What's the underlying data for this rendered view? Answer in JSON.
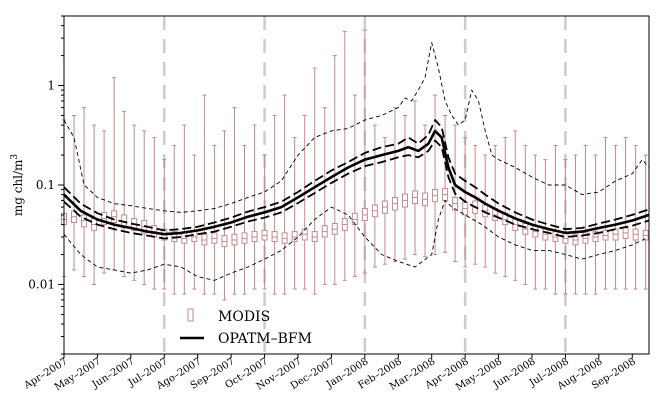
{
  "chart_data": {
    "type": "line",
    "ylabel": "mg chl/m",
    "ylabel_superscript": "3",
    "yscale": "log",
    "ylim": [
      0.002,
      5
    ],
    "ytick_labels": [
      "0.01",
      "0.1",
      "1"
    ],
    "ytick_values": [
      0.01,
      0.1,
      1
    ],
    "xlim": [
      0,
      17.5
    ],
    "x_month_labels": [
      "Apr–2007",
      "May–2007",
      "Jun–2007",
      "Jul–2007",
      "Ago–2007",
      "Sep–2007",
      "Oct–2007",
      "Nov–2007",
      "Dec–2007",
      "Jan–2008",
      "Feb–2008",
      "Mar–2008",
      "Apr–2008",
      "May–2008",
      "Jun–2008",
      "Jul–2008",
      "Aug–2008",
      "Sep–2008"
    ],
    "vertical_dashed_lines_at_month": [
      3,
      6,
      9,
      12,
      15
    ],
    "legend": {
      "position": "bottom-left",
      "entries": [
        "MODIS",
        "OPATM–BFM"
      ]
    },
    "colors": {
      "modis": "#c48a8f",
      "model": "#000000",
      "vline": "#cccccc"
    },
    "series": [
      {
        "name": "OPATM–BFM",
        "style": "solid-thick",
        "points": [
          [
            0,
            0.08
          ],
          [
            0.5,
            0.055
          ],
          [
            1,
            0.045
          ],
          [
            1.5,
            0.04
          ],
          [
            2,
            0.037
          ],
          [
            2.5,
            0.034
          ],
          [
            3,
            0.032
          ],
          [
            3.5,
            0.033
          ],
          [
            4,
            0.035
          ],
          [
            4.5,
            0.038
          ],
          [
            5,
            0.042
          ],
          [
            5.5,
            0.048
          ],
          [
            6,
            0.053
          ],
          [
            6.5,
            0.06
          ],
          [
            7,
            0.075
          ],
          [
            7.5,
            0.095
          ],
          [
            8,
            0.12
          ],
          [
            8.5,
            0.15
          ],
          [
            9,
            0.18
          ],
          [
            9.5,
            0.2
          ],
          [
            10,
            0.22
          ],
          [
            10.3,
            0.24
          ],
          [
            10.6,
            0.22
          ],
          [
            10.9,
            0.26
          ],
          [
            11.1,
            0.35
          ],
          [
            11.3,
            0.3
          ],
          [
            11.5,
            0.15
          ],
          [
            11.7,
            0.1
          ],
          [
            12,
            0.085
          ],
          [
            12.3,
            0.075
          ],
          [
            12.6,
            0.065
          ],
          [
            13,
            0.055
          ],
          [
            13.5,
            0.046
          ],
          [
            14,
            0.04
          ],
          [
            14.5,
            0.036
          ],
          [
            15,
            0.033
          ],
          [
            15.5,
            0.034
          ],
          [
            16,
            0.037
          ],
          [
            16.5,
            0.04
          ],
          [
            17,
            0.044
          ],
          [
            17.5,
            0.05
          ]
        ]
      },
      {
        "name": "",
        "style": "dashed-thick",
        "points": [
          [
            0,
            0.095
          ],
          [
            0.5,
            0.065
          ],
          [
            1,
            0.052
          ],
          [
            1.5,
            0.045
          ],
          [
            2,
            0.041
          ],
          [
            2.5,
            0.038
          ],
          [
            3,
            0.035
          ],
          [
            3.5,
            0.036
          ],
          [
            4,
            0.038
          ],
          [
            4.5,
            0.042
          ],
          [
            5,
            0.047
          ],
          [
            5.5,
            0.054
          ],
          [
            6,
            0.06
          ],
          [
            6.5,
            0.068
          ],
          [
            7,
            0.085
          ],
          [
            7.5,
            0.11
          ],
          [
            8,
            0.14
          ],
          [
            8.5,
            0.17
          ],
          [
            9,
            0.21
          ],
          [
            9.5,
            0.24
          ],
          [
            10,
            0.26
          ],
          [
            10.3,
            0.3
          ],
          [
            10.6,
            0.26
          ],
          [
            10.9,
            0.32
          ],
          [
            11.1,
            0.45
          ],
          [
            11.3,
            0.38
          ],
          [
            11.5,
            0.19
          ],
          [
            11.7,
            0.13
          ],
          [
            12,
            0.11
          ],
          [
            12.3,
            0.095
          ],
          [
            12.6,
            0.08
          ],
          [
            13,
            0.065
          ],
          [
            13.5,
            0.053
          ],
          [
            14,
            0.045
          ],
          [
            14.5,
            0.04
          ],
          [
            15,
            0.036
          ],
          [
            15.5,
            0.037
          ],
          [
            16,
            0.041
          ],
          [
            16.5,
            0.045
          ],
          [
            17,
            0.05
          ],
          [
            17.5,
            0.057
          ]
        ]
      },
      {
        "name": "",
        "style": "dashed-thick",
        "points": [
          [
            0,
            0.068
          ],
          [
            0.5,
            0.048
          ],
          [
            1,
            0.04
          ],
          [
            1.5,
            0.036
          ],
          [
            2,
            0.033
          ],
          [
            2.5,
            0.031
          ],
          [
            3,
            0.029
          ],
          [
            3.5,
            0.03
          ],
          [
            4,
            0.032
          ],
          [
            4.5,
            0.034
          ],
          [
            5,
            0.038
          ],
          [
            5.5,
            0.043
          ],
          [
            6,
            0.047
          ],
          [
            6.5,
            0.053
          ],
          [
            7,
            0.066
          ],
          [
            7.5,
            0.083
          ],
          [
            8,
            0.105
          ],
          [
            8.5,
            0.13
          ],
          [
            9,
            0.155
          ],
          [
            9.5,
            0.17
          ],
          [
            10,
            0.19
          ],
          [
            10.3,
            0.2
          ],
          [
            10.6,
            0.19
          ],
          [
            10.9,
            0.22
          ],
          [
            11.1,
            0.28
          ],
          [
            11.3,
            0.24
          ],
          [
            11.5,
            0.12
          ],
          [
            11.7,
            0.082
          ],
          [
            12,
            0.068
          ],
          [
            12.3,
            0.06
          ],
          [
            12.6,
            0.053
          ],
          [
            13,
            0.047
          ],
          [
            13.5,
            0.04
          ],
          [
            14,
            0.036
          ],
          [
            14.5,
            0.033
          ],
          [
            15,
            0.03
          ],
          [
            15.5,
            0.031
          ],
          [
            16,
            0.033
          ],
          [
            16.5,
            0.036
          ],
          [
            17,
            0.039
          ],
          [
            17.5,
            0.044
          ]
        ]
      },
      {
        "name": "",
        "style": "dashed-thin",
        "points": [
          [
            0,
            0.45
          ],
          [
            0.3,
            0.3
          ],
          [
            0.6,
            0.1
          ],
          [
            1,
            0.075
          ],
          [
            1.5,
            0.065
          ],
          [
            2,
            0.062
          ],
          [
            2.5,
            0.058
          ],
          [
            3,
            0.055
          ],
          [
            3.5,
            0.053
          ],
          [
            4,
            0.055
          ],
          [
            4.5,
            0.058
          ],
          [
            5,
            0.065
          ],
          [
            5.5,
            0.075
          ],
          [
            6,
            0.085
          ],
          [
            6.5,
            0.11
          ],
          [
            7,
            0.2
          ],
          [
            7.5,
            0.3
          ],
          [
            8,
            0.35
          ],
          [
            8.5,
            0.37
          ],
          [
            9,
            0.45
          ],
          [
            9.5,
            0.5
          ],
          [
            10,
            0.6
          ],
          [
            10.2,
            0.75
          ],
          [
            10.4,
            0.7
          ],
          [
            10.6,
            0.9
          ],
          [
            10.8,
            1.2
          ],
          [
            11,
            2.7
          ],
          [
            11.2,
            1.5
          ],
          [
            11.4,
            0.7
          ],
          [
            11.6,
            0.5
          ],
          [
            11.8,
            0.4
          ],
          [
            12,
            0.45
          ],
          [
            12.2,
            0.9
          ],
          [
            12.4,
            0.7
          ],
          [
            12.6,
            0.35
          ],
          [
            12.8,
            0.2
          ],
          [
            13,
            0.18
          ],
          [
            13.5,
            0.15
          ],
          [
            14,
            0.12
          ],
          [
            14.5,
            0.1
          ],
          [
            15,
            0.1
          ],
          [
            15.5,
            0.08
          ],
          [
            16,
            0.085
          ],
          [
            16.5,
            0.11
          ],
          [
            17,
            0.13
          ],
          [
            17.3,
            0.18
          ],
          [
            17.5,
            0.15
          ]
        ]
      },
      {
        "name": "",
        "style": "dashed-thin",
        "points": [
          [
            0,
            0.032
          ],
          [
            0.5,
            0.02
          ],
          [
            1,
            0.015
          ],
          [
            1.5,
            0.014
          ],
          [
            2,
            0.013
          ],
          [
            2.5,
            0.014
          ],
          [
            3,
            0.016
          ],
          [
            3.5,
            0.015
          ],
          [
            4,
            0.012
          ],
          [
            4.5,
            0.011
          ],
          [
            5,
            0.013
          ],
          [
            5.5,
            0.015
          ],
          [
            6,
            0.018
          ],
          [
            6.5,
            0.022
          ],
          [
            7,
            0.03
          ],
          [
            7.5,
            0.045
          ],
          [
            8,
            0.06
          ],
          [
            8.5,
            0.05
          ],
          [
            9,
            0.03
          ],
          [
            9.5,
            0.02
          ],
          [
            10,
            0.017
          ],
          [
            10.5,
            0.015
          ],
          [
            11,
            0.02
          ],
          [
            11.2,
            0.045
          ],
          [
            11.4,
            0.07
          ],
          [
            11.6,
            0.06
          ],
          [
            12,
            0.05
          ],
          [
            12.5,
            0.04
          ],
          [
            13,
            0.03
          ],
          [
            13.5,
            0.025
          ],
          [
            14,
            0.022
          ],
          [
            14.5,
            0.022
          ],
          [
            15,
            0.02
          ],
          [
            15.5,
            0.018
          ],
          [
            16,
            0.02
          ],
          [
            16.5,
            0.022
          ],
          [
            17,
            0.025
          ],
          [
            17.5,
            0.03
          ]
        ]
      }
    ],
    "modis_boxes": [
      [
        0.0,
        0.045,
        0.04,
        0.052,
        0.012,
        0.45
      ],
      [
        0.3,
        0.048,
        0.042,
        0.055,
        0.014,
        0.5
      ],
      [
        0.6,
        0.044,
        0.038,
        0.05,
        0.012,
        0.6
      ],
      [
        0.9,
        0.04,
        0.035,
        0.046,
        0.01,
        0.4
      ],
      [
        1.2,
        0.046,
        0.04,
        0.053,
        0.013,
        0.35
      ],
      [
        1.5,
        0.048,
        0.042,
        0.055,
        0.014,
        1.2
      ],
      [
        1.8,
        0.043,
        0.037,
        0.05,
        0.012,
        0.55
      ],
      [
        2.1,
        0.04,
        0.035,
        0.046,
        0.011,
        0.4
      ],
      [
        2.4,
        0.038,
        0.033,
        0.044,
        0.01,
        0.35
      ],
      [
        2.7,
        0.034,
        0.03,
        0.039,
        0.009,
        0.3
      ],
      [
        3.0,
        0.032,
        0.028,
        0.036,
        0.009,
        0.18
      ],
      [
        3.3,
        0.03,
        0.027,
        0.034,
        0.008,
        0.25
      ],
      [
        3.6,
        0.029,
        0.026,
        0.033,
        0.008,
        0.4
      ],
      [
        3.9,
        0.03,
        0.027,
        0.034,
        0.009,
        0.2
      ],
      [
        4.2,
        0.028,
        0.025,
        0.032,
        0.008,
        0.8
      ],
      [
        4.5,
        0.029,
        0.026,
        0.033,
        0.008,
        0.25
      ],
      [
        4.8,
        0.027,
        0.024,
        0.031,
        0.007,
        0.35
      ],
      [
        5.1,
        0.028,
        0.025,
        0.032,
        0.008,
        0.6
      ],
      [
        5.4,
        0.029,
        0.026,
        0.033,
        0.008,
        0.25
      ],
      [
        5.7,
        0.03,
        0.027,
        0.034,
        0.009,
        0.4
      ],
      [
        6.0,
        0.031,
        0.028,
        0.035,
        0.009,
        0.2
      ],
      [
        6.3,
        0.03,
        0.027,
        0.034,
        0.008,
        0.5
      ],
      [
        6.6,
        0.029,
        0.026,
        0.033,
        0.008,
        0.8
      ],
      [
        6.9,
        0.03,
        0.027,
        0.034,
        0.009,
        0.3
      ],
      [
        7.2,
        0.032,
        0.028,
        0.036,
        0.009,
        0.5
      ],
      [
        7.5,
        0.03,
        0.027,
        0.034,
        0.008,
        1.5
      ],
      [
        7.8,
        0.034,
        0.03,
        0.039,
        0.01,
        0.6
      ],
      [
        8.1,
        0.036,
        0.032,
        0.041,
        0.01,
        2.0
      ],
      [
        8.4,
        0.04,
        0.035,
        0.046,
        0.011,
        3.5
      ],
      [
        8.7,
        0.045,
        0.04,
        0.052,
        0.012,
        0.8
      ],
      [
        9.0,
        0.05,
        0.044,
        0.058,
        0.013,
        3.6
      ],
      [
        9.3,
        0.055,
        0.048,
        0.063,
        0.015,
        0.4
      ],
      [
        9.6,
        0.06,
        0.052,
        0.069,
        0.016,
        0.3
      ],
      [
        9.9,
        0.065,
        0.056,
        0.075,
        0.017,
        0.6
      ],
      [
        10.2,
        0.07,
        0.06,
        0.081,
        0.018,
        0.5
      ],
      [
        10.5,
        0.075,
        0.065,
        0.087,
        0.02,
        0.7
      ],
      [
        10.8,
        0.072,
        0.062,
        0.083,
        0.019,
        0.4
      ],
      [
        11.1,
        0.078,
        0.068,
        0.09,
        0.02,
        0.8
      ],
      [
        11.4,
        0.08,
        0.07,
        0.092,
        0.021,
        0.5
      ],
      [
        11.7,
        0.065,
        0.056,
        0.075,
        0.017,
        0.4
      ],
      [
        12.0,
        0.058,
        0.05,
        0.067,
        0.015,
        0.3
      ],
      [
        12.3,
        0.06,
        0.052,
        0.069,
        0.016,
        0.25
      ],
      [
        12.6,
        0.055,
        0.048,
        0.063,
        0.015,
        0.2
      ],
      [
        12.9,
        0.05,
        0.044,
        0.058,
        0.013,
        0.25
      ],
      [
        13.2,
        0.045,
        0.04,
        0.052,
        0.012,
        0.3
      ],
      [
        13.5,
        0.04,
        0.035,
        0.046,
        0.011,
        0.35
      ],
      [
        13.8,
        0.036,
        0.032,
        0.041,
        0.01,
        0.25
      ],
      [
        14.1,
        0.034,
        0.03,
        0.039,
        0.009,
        0.2
      ],
      [
        14.4,
        0.032,
        0.028,
        0.036,
        0.009,
        0.18
      ],
      [
        14.7,
        0.03,
        0.027,
        0.034,
        0.008,
        0.25
      ],
      [
        15.0,
        0.029,
        0.026,
        0.033,
        0.008,
        0.18
      ],
      [
        15.3,
        0.028,
        0.025,
        0.032,
        0.008,
        0.2
      ],
      [
        15.6,
        0.029,
        0.026,
        0.033,
        0.008,
        0.25
      ],
      [
        15.9,
        0.03,
        0.027,
        0.034,
        0.008,
        0.2
      ],
      [
        16.2,
        0.031,
        0.028,
        0.035,
        0.009,
        0.3
      ],
      [
        16.5,
        0.032,
        0.028,
        0.036,
        0.009,
        0.25
      ],
      [
        16.8,
        0.033,
        0.029,
        0.037,
        0.009,
        0.3
      ],
      [
        17.1,
        0.032,
        0.028,
        0.036,
        0.009,
        0.25
      ],
      [
        17.4,
        0.031,
        0.028,
        0.035,
        0.009,
        0.2
      ]
    ]
  }
}
